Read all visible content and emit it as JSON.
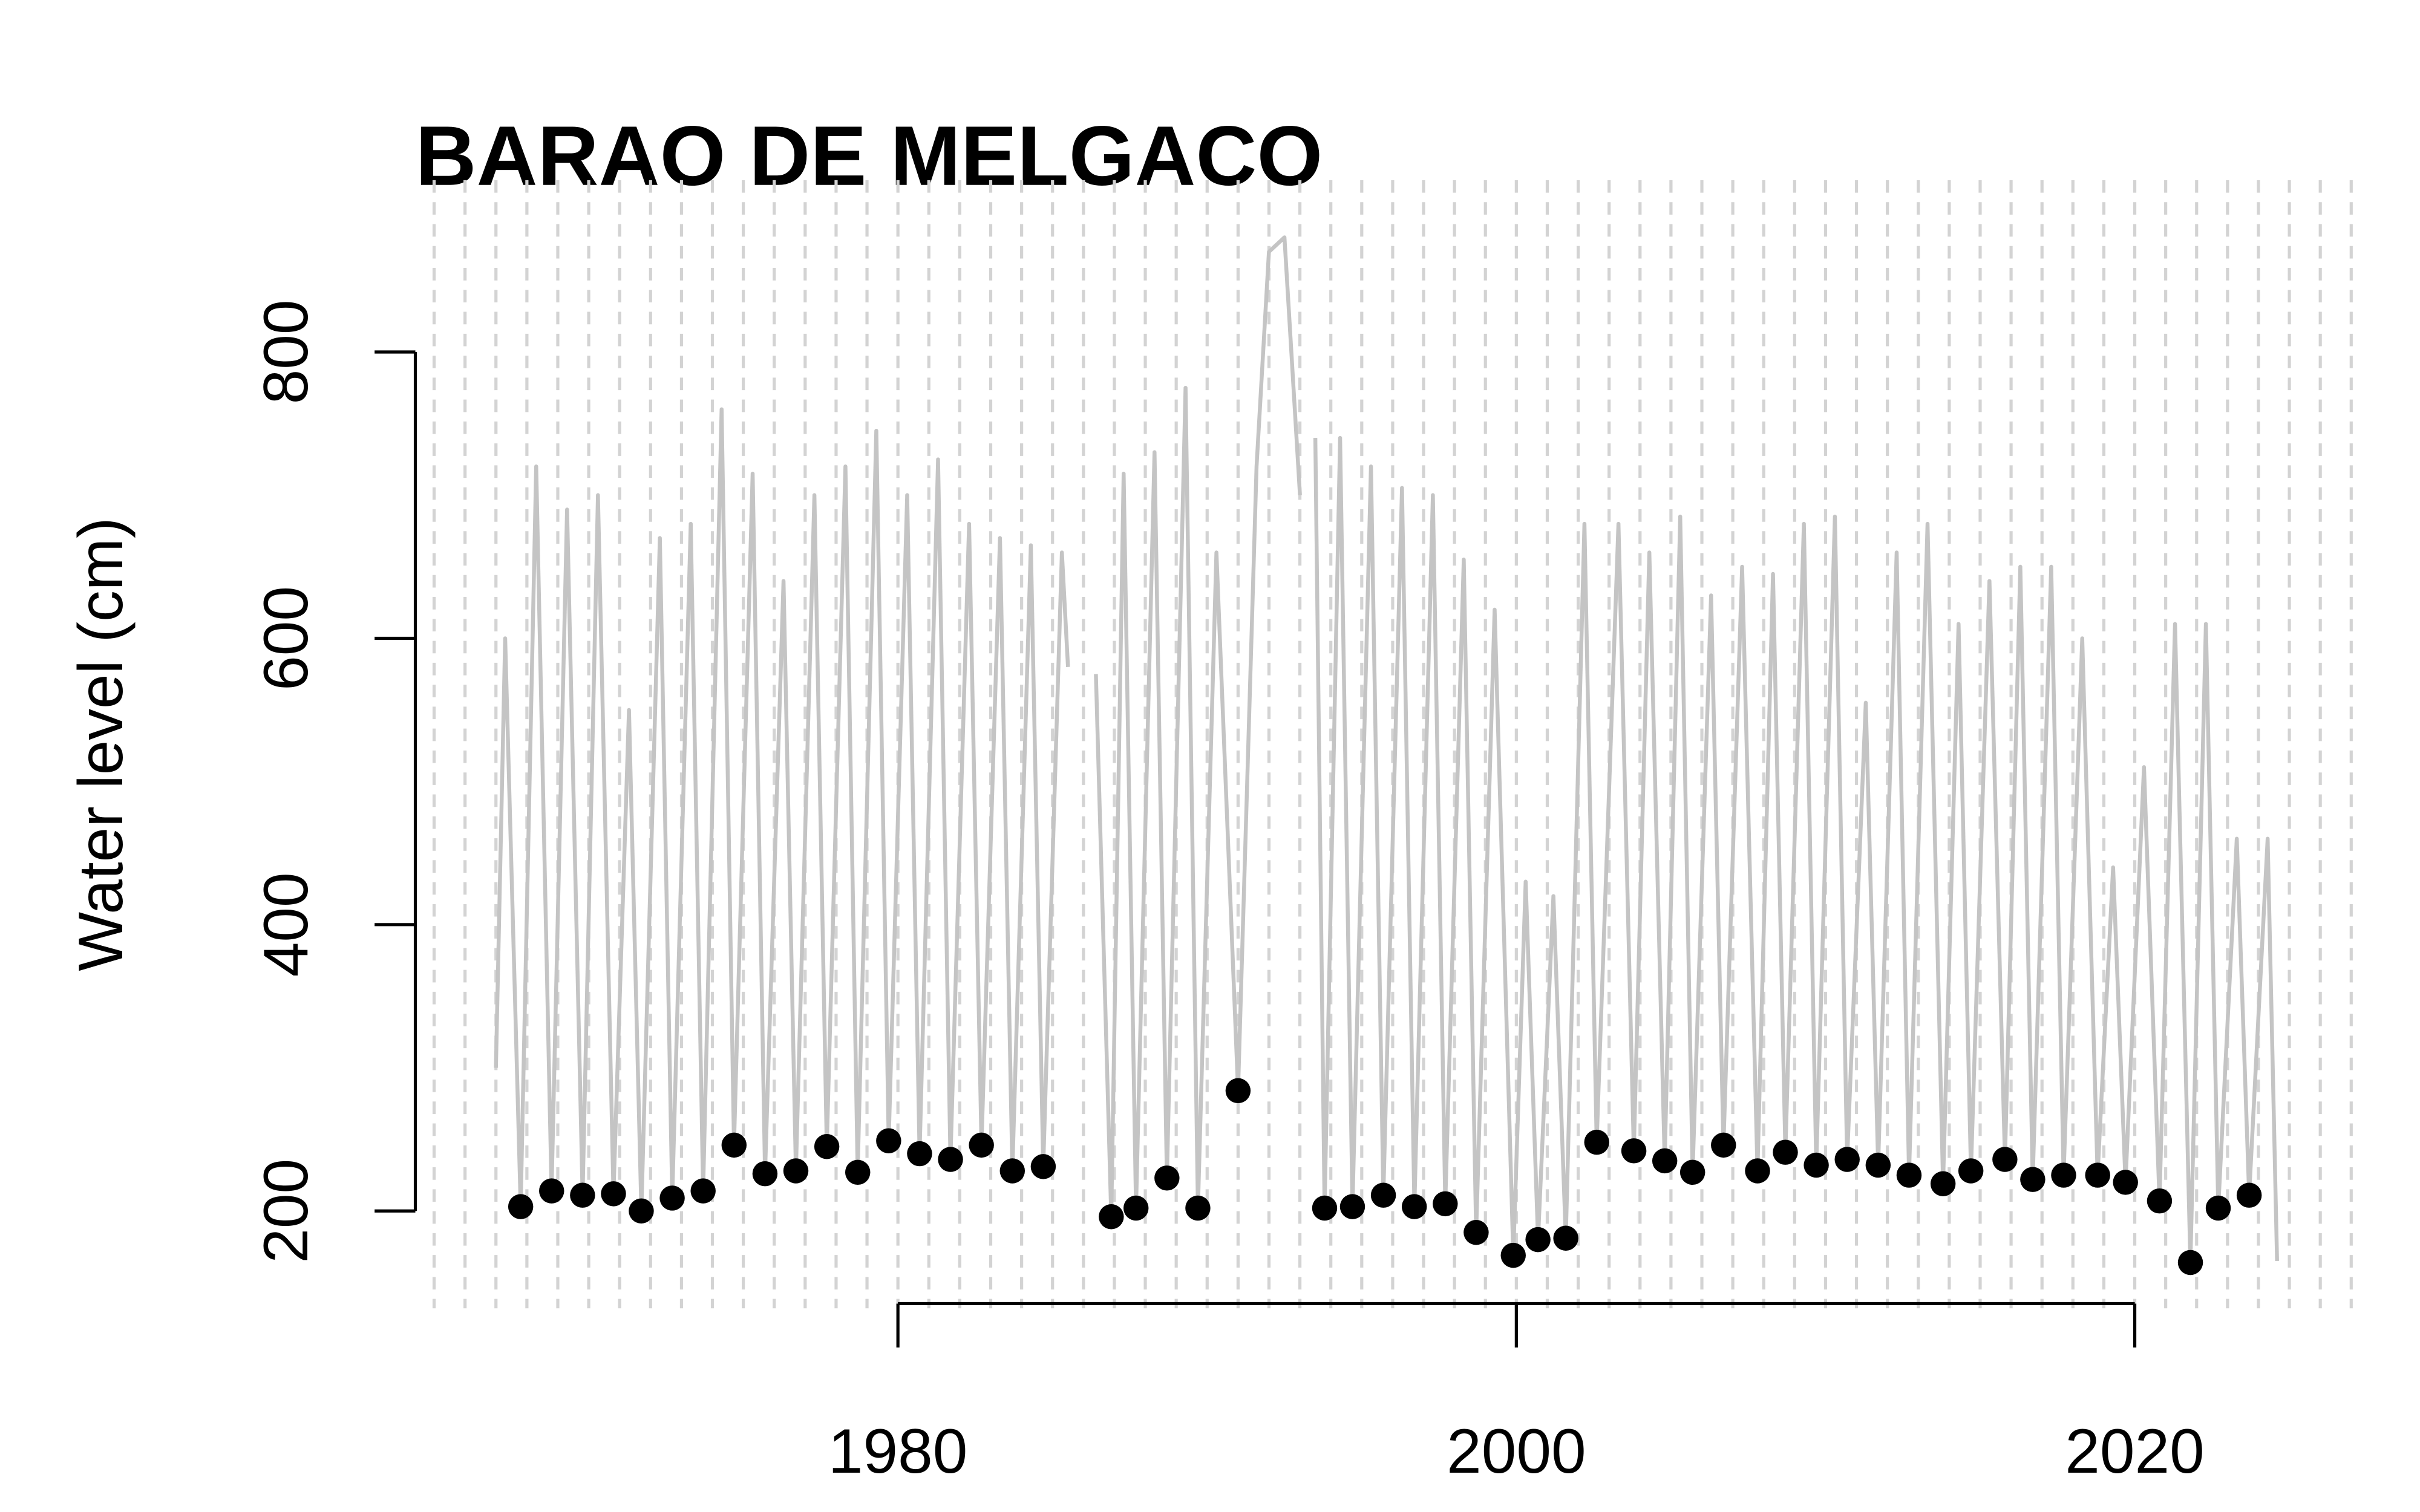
{
  "chart_data": {
    "type": "line",
    "title": "BARAO DE MELGACO",
    "y_label": "Water level (cm)",
    "xlim": [
      1964.9,
      2027.4
    ],
    "ylim": [
      132,
      920
    ],
    "xticks": [
      1980,
      2000,
      2020
    ],
    "yticks": [
      200,
      400,
      600,
      800
    ],
    "year_grid": true,
    "series": [
      {
        "kind": "line",
        "color": "#c4c4c4",
        "x": [
          1967.0,
          1967.3,
          1967.8,
          1968.3,
          1968.8,
          1969.3,
          1969.8,
          1970.3,
          1970.8,
          1971.3,
          1971.7,
          1972.3,
          1972.7,
          1973.3,
          1973.7,
          1974.3,
          1974.7,
          1975.3,
          1975.7,
          1976.3,
          1976.7,
          1977.3,
          1977.7,
          1978.3,
          1978.7,
          1979.3,
          1979.7,
          1980.3,
          1980.7,
          1981.3,
          1981.7,
          1982.3,
          1982.7,
          1983.3,
          1983.7,
          1984.3,
          1984.7,
          1985.3,
          1985.5,
          1985.8,
          1986.4,
          1986.9,
          1987.3,
          1987.7,
          1988.3,
          1988.7,
          1989.3,
          1989.7,
          1990.3,
          1991.0,
          1991.6,
          1992.0,
          1992.5,
          1993.0,
          1993.2,
          1993.5,
          1993.8,
          1994.3,
          1994.7,
          1995.3,
          1995.7,
          1996.3,
          1996.7,
          1997.3,
          1997.7,
          1998.3,
          1998.7,
          1999.3,
          1999.9,
          2000.3,
          2000.7,
          2001.2,
          2001.6,
          2002.2,
          2002.6,
          2003.3,
          2003.8,
          2004.3,
          2004.8,
          2005.3,
          2005.7,
          2006.3,
          2006.7,
          2007.3,
          2007.8,
          2008.3,
          2008.7,
          2009.3,
          2009.7,
          2010.3,
          2010.7,
          2011.3,
          2011.7,
          2012.3,
          2012.7,
          2013.3,
          2013.8,
          2014.3,
          2014.7,
          2015.3,
          2015.8,
          2016.3,
          2016.7,
          2017.3,
          2017.7,
          2018.3,
          2018.8,
          2019.3,
          2019.7,
          2020.3,
          2020.8,
          2021.3,
          2021.8,
          2022.3,
          2022.7,
          2023.3,
          2023.7,
          2024.3,
          2024.6
        ],
        "values": [
          300,
          600,
          203,
          720,
          214,
          690,
          211,
          700,
          212,
          550,
          200,
          670,
          209,
          680,
          214,
          760,
          246,
          715,
          226,
          640,
          228,
          700,
          245,
          720,
          227,
          745,
          249,
          700,
          240,
          725,
          236,
          680,
          246,
          670,
          228,
          665,
          231,
          660,
          580,
          null,
          575,
          196,
          715,
          202,
          730,
          223,
          775,
          202,
          660,
          284,
          720,
          870,
          880,
          700,
          null,
          740,
          202,
          740,
          203,
          720,
          211,
          705,
          203,
          700,
          205,
          655,
          185,
          620,
          169,
          430,
          180,
          420,
          181,
          680,
          248,
          680,
          242,
          660,
          235,
          685,
          227,
          630,
          246,
          650,
          228,
          645,
          241,
          680,
          232,
          685,
          236,
          555,
          232,
          660,
          225,
          680,
          219,
          610,
          228,
          640,
          236,
          650,
          222,
          650,
          225,
          600,
          225,
          440,
          220,
          510,
          207,
          610,
          164,
          610,
          202,
          460,
          211,
          460,
          165
        ]
      },
      {
        "kind": "points",
        "color": "#000000",
        "x": [
          1967.8,
          1968.8,
          1969.8,
          1970.8,
          1971.7,
          1972.7,
          1973.7,
          1974.7,
          1975.7,
          1976.7,
          1977.7,
          1978.7,
          1979.7,
          1980.7,
          1981.7,
          1982.7,
          1983.7,
          1984.7,
          1986.9,
          1987.7,
          1988.7,
          1989.7,
          1991.0,
          1993.8,
          1994.7,
          1995.7,
          1996.7,
          1997.7,
          1998.7,
          1999.9,
          2000.7,
          2001.6,
          2002.6,
          2003.8,
          2004.8,
          2005.7,
          2006.7,
          2007.8,
          2008.7,
          2009.7,
          2010.7,
          2011.7,
          2012.7,
          2013.8,
          2014.7,
          2015.8,
          2016.7,
          2017.7,
          2018.8,
          2019.7,
          2020.8,
          2021.8,
          2022.7,
          2023.7
        ],
        "values": [
          203,
          214,
          211,
          212,
          200,
          209,
          214,
          246,
          226,
          228,
          245,
          227,
          249,
          240,
          236,
          246,
          228,
          231,
          196,
          202,
          223,
          202,
          284,
          202,
          203,
          211,
          203,
          205,
          185,
          169,
          180,
          181,
          248,
          242,
          235,
          227,
          246,
          228,
          241,
          232,
          236,
          232,
          225,
          219,
          228,
          236,
          222,
          225,
          225,
          220,
          207,
          164,
          202,
          211
        ]
      }
    ]
  }
}
